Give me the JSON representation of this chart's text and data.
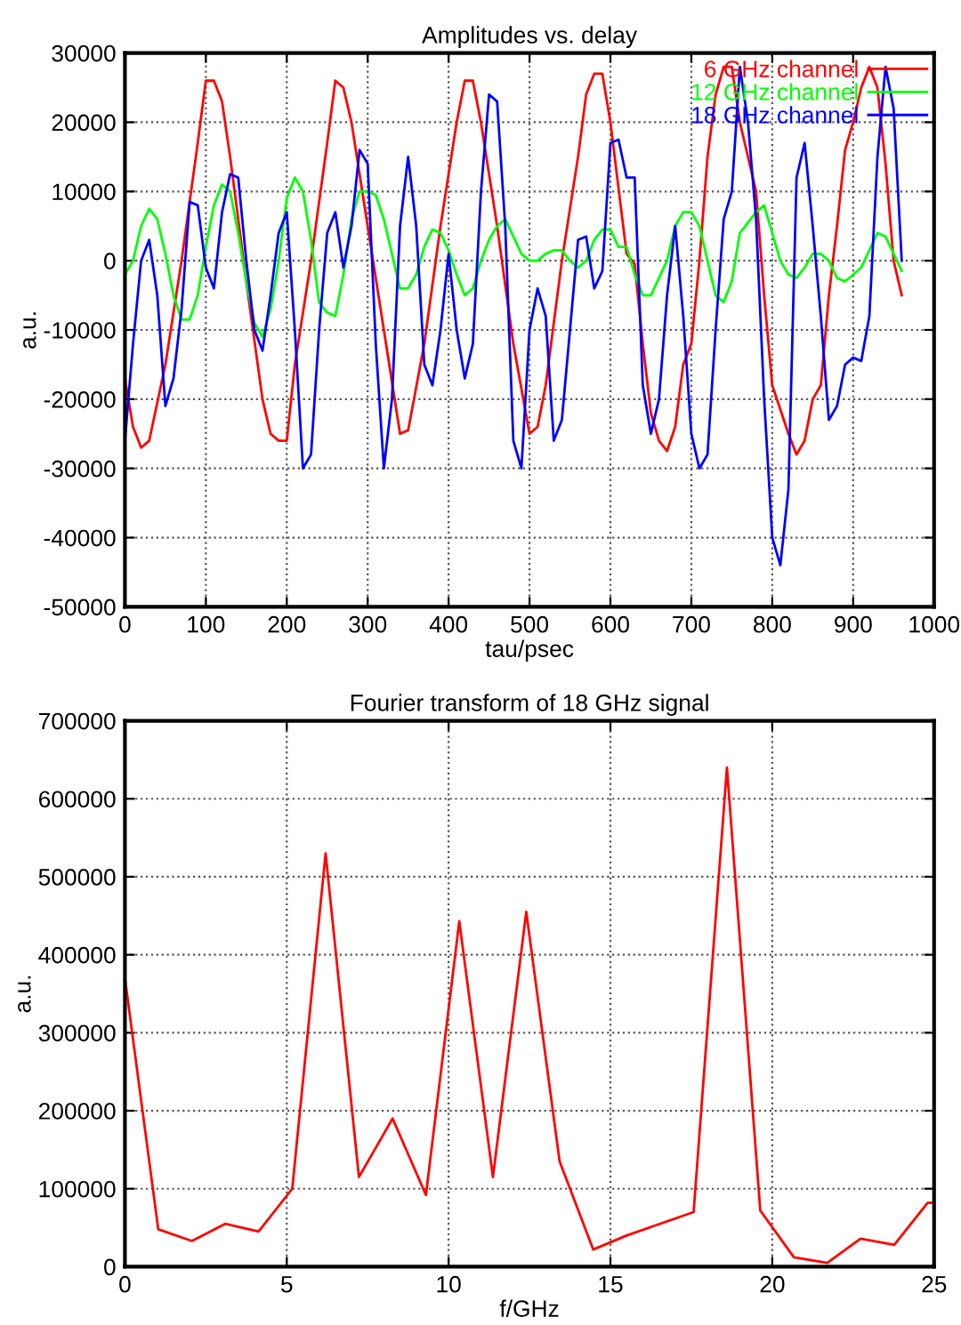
{
  "chart_data": [
    {
      "type": "line",
      "title": "Amplitudes vs. delay",
      "xlabel": "tau/psec",
      "ylabel": "a.u.",
      "xlim": [
        0,
        1000
      ],
      "xticks": [
        0,
        100,
        200,
        300,
        400,
        500,
        600,
        700,
        800,
        900,
        1000
      ],
      "ylim": [
        -50000,
        30000
      ],
      "yticks": [
        -50000,
        -40000,
        -30000,
        -20000,
        -10000,
        0,
        10000,
        20000,
        30000
      ],
      "grid": true,
      "legend": "top right",
      "line_style": "solid",
      "series": [
        {
          "name": "6 GHz channel",
          "color": "#ff0000",
          "x": [
            0,
            10,
            20,
            30,
            50,
            70,
            90,
            100,
            110,
            120,
            130,
            150,
            170,
            180,
            190,
            200,
            210,
            230,
            250,
            260,
            270,
            280,
            300,
            320,
            340,
            350,
            370,
            390,
            410,
            420,
            430,
            440,
            460,
            480,
            500,
            510,
            520,
            540,
            560,
            570,
            580,
            590,
            600,
            620,
            630,
            640,
            650,
            660,
            670,
            680,
            690,
            700,
            710,
            720,
            730,
            740,
            750,
            760,
            780,
            790,
            800,
            820,
            830,
            840,
            850,
            860,
            870,
            880,
            890,
            900,
            910,
            920,
            930,
            940,
            950,
            960
          ],
          "values": [
            -17000,
            -24000,
            -27000,
            -26000,
            -15000,
            0,
            17000,
            26000,
            26000,
            23000,
            15000,
            -3000,
            -20000,
            -25000,
            -26000,
            -26000,
            -15000,
            0,
            17000,
            26000,
            25000,
            20000,
            5000,
            -10000,
            -25000,
            -24500,
            -12000,
            5000,
            20000,
            26000,
            26000,
            20000,
            5000,
            -12000,
            -25000,
            -24000,
            -18000,
            0,
            15000,
            24000,
            27000,
            27000,
            20000,
            1000,
            -500,
            -12000,
            -22000,
            -26000,
            -27500,
            -24000,
            -15000,
            -12000,
            0,
            15000,
            24000,
            28000,
            28000,
            20000,
            10000,
            -5000,
            -18000,
            -25000,
            -28000,
            -26000,
            -20000,
            -18000,
            -5000,
            5000,
            16000,
            20000,
            25000,
            28000,
            25000,
            14000,
            0,
            -5000
          ]
        },
        {
          "name": "12 GHz channel",
          "color": "#00ff00",
          "x": [
            0,
            10,
            20,
            30,
            40,
            50,
            60,
            70,
            80,
            90,
            100,
            110,
            120,
            130,
            140,
            150,
            160,
            170,
            180,
            190,
            200,
            210,
            220,
            230,
            240,
            250,
            260,
            270,
            280,
            290,
            300,
            310,
            320,
            340,
            350,
            360,
            370,
            380,
            390,
            400,
            410,
            420,
            430,
            440,
            450,
            460,
            470,
            480,
            490,
            500,
            510,
            520,
            530,
            540,
            550,
            560,
            570,
            580,
            590,
            600,
            610,
            620,
            630,
            640,
            650,
            670,
            680,
            690,
            700,
            710,
            720,
            730,
            740,
            750,
            760,
            780,
            790,
            800,
            810,
            820,
            830,
            840,
            850,
            860,
            870,
            880,
            890,
            900,
            910,
            920,
            930,
            940,
            950,
            960
          ],
          "values": [
            -2000,
            0,
            5000,
            7500,
            6000,
            1000,
            -5000,
            -8500,
            -8500,
            -5000,
            2000,
            8000,
            11000,
            10000,
            4000,
            -3000,
            -9000,
            -11000,
            -7000,
            0,
            9000,
            12000,
            10000,
            3000,
            -6000,
            -7500,
            -8000,
            -2000,
            6000,
            10000,
            10000,
            9500,
            6000,
            -4000,
            -4000,
            -2000,
            2000,
            4500,
            4000,
            1500,
            -2000,
            -5000,
            -4000,
            0,
            3000,
            5000,
            6000,
            3500,
            1000,
            0,
            0,
            1000,
            1500,
            1500,
            0,
            -1000,
            0,
            3000,
            4500,
            4500,
            2000,
            2000,
            -2000,
            -5000,
            -5000,
            0,
            5000,
            7000,
            7000,
            5000,
            0,
            -5000,
            -6000,
            -3000,
            4000,
            7000,
            8000,
            4000,
            0,
            -2000,
            -2500,
            -1000,
            1000,
            1000,
            0,
            -2500,
            -3000,
            -2000,
            -1000,
            1500,
            4000,
            3500,
            1000,
            -1500
          ]
        },
        {
          "name": "18 GHz channel",
          "color": "#0000ff",
          "x": [
            0,
            10,
            20,
            30,
            40,
            50,
            60,
            70,
            80,
            90,
            100,
            110,
            120,
            130,
            140,
            150,
            160,
            170,
            180,
            190,
            200,
            210,
            220,
            230,
            240,
            250,
            260,
            270,
            280,
            290,
            300,
            310,
            320,
            330,
            340,
            350,
            360,
            370,
            380,
            390,
            400,
            410,
            420,
            430,
            440,
            450,
            460,
            470,
            480,
            490,
            500,
            510,
            520,
            530,
            540,
            550,
            560,
            570,
            580,
            590,
            600,
            610,
            620,
            630,
            640,
            650,
            660,
            670,
            680,
            690,
            700,
            710,
            720,
            730,
            740,
            750,
            760,
            770,
            780,
            790,
            800,
            810,
            820,
            830,
            840,
            850,
            860,
            870,
            880,
            890,
            900,
            910,
            920,
            930,
            940,
            950,
            960
          ],
          "values": [
            -26000,
            -12000,
            0,
            3000,
            -5000,
            -21000,
            -17000,
            -7000,
            8500,
            8000,
            -1000,
            -4000,
            7000,
            12500,
            12000,
            0,
            -10000,
            -13000,
            -5000,
            4000,
            7000,
            -10000,
            -30000,
            -28000,
            -10000,
            4000,
            7000,
            -1000,
            5000,
            16000,
            14000,
            -12000,
            -30000,
            -20000,
            5000,
            15000,
            5000,
            -15000,
            -18000,
            -10000,
            1000,
            -10000,
            -17000,
            -12000,
            10000,
            24000,
            23000,
            5000,
            -26000,
            -30000,
            -10000,
            -4000,
            -8000,
            -26000,
            -23000,
            -10000,
            3000,
            3500,
            -4000,
            -1500,
            17000,
            17500,
            12000,
            12000,
            -18000,
            -25000,
            -20000,
            -5000,
            5000,
            -8000,
            -25000,
            -30000,
            -28000,
            -10000,
            6000,
            10000,
            28000,
            20000,
            6000,
            -20000,
            -40000,
            -44000,
            -33000,
            12000,
            17000,
            5000,
            -8000,
            -23000,
            -21000,
            -15000,
            -14000,
            -14500,
            -8000,
            15000,
            28000,
            22000,
            0
          ]
        }
      ]
    },
    {
      "type": "line",
      "title": "Fourier transform of 18 GHz signal",
      "xlabel": "f/GHz",
      "ylabel": "a.u.",
      "xlim": [
        0,
        25
      ],
      "xticks": [
        0,
        5,
        10,
        15,
        20,
        25
      ],
      "ylim": [
        0,
        700000
      ],
      "yticks": [
        0,
        100000,
        200000,
        300000,
        400000,
        500000,
        600000,
        700000
      ],
      "grid": true,
      "line_style": "solid",
      "series": [
        {
          "color": "#ff0000",
          "x": [
            0,
            1.03,
            2.07,
            3.1,
            4.13,
            5.17,
            6.2,
            7.23,
            8.27,
            9.3,
            10.33,
            11.37,
            12.4,
            13.43,
            14.47,
            15.5,
            16.53,
            17.57,
            18.6,
            19.63,
            20.67,
            21.7,
            22.73,
            23.77,
            24.8,
            25
          ],
          "values": [
            370000,
            48000,
            33000,
            55000,
            45000,
            100000,
            530000,
            115000,
            190000,
            92000,
            443000,
            115000,
            455000,
            135000,
            22000,
            40000,
            55000,
            70000,
            640000,
            72000,
            12000,
            5000,
            36000,
            28000,
            82000,
            82000
          ]
        }
      ]
    }
  ]
}
